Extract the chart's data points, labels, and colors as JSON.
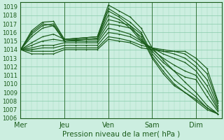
{
  "title": "Pression niveau de la mer( hPa )",
  "x_labels": [
    "Mer",
    "Jeu",
    "Ven",
    "Sam",
    "Dim"
  ],
  "x_ticks": [
    0,
    24,
    48,
    72,
    96
  ],
  "x_max": 110,
  "y_min": 1006,
  "y_max": 1019.5,
  "y_ticks": [
    1006,
    1007,
    1008,
    1009,
    1010,
    1011,
    1012,
    1013,
    1014,
    1015,
    1016,
    1017,
    1018,
    1019
  ],
  "bg_color": "#cceee0",
  "grid_color": "#88ccaa",
  "line_color": "#1a5c1a",
  "line_width": 0.85,
  "lines": [
    [
      0,
      1014.0,
      6,
      1015.8,
      12,
      1016.8,
      18,
      1017.0,
      24,
      1015.2,
      30,
      1015.3,
      36,
      1015.4,
      42,
      1015.5,
      48,
      1019.2,
      54,
      1018.5,
      60,
      1017.8,
      66,
      1016.5,
      72,
      1014.2,
      78,
      1012.8,
      84,
      1011.5,
      90,
      1010.2,
      96,
      1009.0,
      102,
      1007.5,
      108,
      1006.5
    ],
    [
      0,
      1014.0,
      6,
      1016.2,
      12,
      1017.2,
      18,
      1017.3,
      24,
      1015.2,
      30,
      1015.3,
      36,
      1015.4,
      42,
      1015.5,
      48,
      1018.8,
      54,
      1018.0,
      60,
      1017.2,
      66,
      1016.0,
      72,
      1013.5,
      78,
      1012.0,
      84,
      1010.5,
      90,
      1009.5,
      96,
      1008.5,
      102,
      1007.2,
      108,
      1006.5
    ],
    [
      0,
      1014.0,
      6,
      1016.0,
      12,
      1017.0,
      18,
      1016.8,
      24,
      1015.0,
      30,
      1015.1,
      36,
      1015.2,
      42,
      1015.3,
      48,
      1018.5,
      54,
      1017.8,
      60,
      1016.8,
      66,
      1015.8,
      72,
      1013.2,
      78,
      1011.5,
      84,
      1010.0,
      90,
      1009.0,
      96,
      1008.0,
      102,
      1007.0,
      108,
      1006.5
    ],
    [
      0,
      1014.0,
      6,
      1015.5,
      12,
      1016.5,
      18,
      1016.8,
      24,
      1015.0,
      30,
      1015.1,
      36,
      1015.2,
      42,
      1015.3,
      48,
      1018.0,
      54,
      1017.5,
      60,
      1016.5,
      66,
      1015.5,
      72,
      1013.0,
      78,
      1011.2,
      84,
      1009.8,
      90,
      1009.0,
      96,
      1008.2,
      102,
      1007.2,
      108,
      1006.5
    ],
    [
      0,
      1014.0,
      6,
      1014.8,
      12,
      1015.5,
      18,
      1015.8,
      24,
      1015.2,
      30,
      1015.2,
      36,
      1015.2,
      42,
      1015.2,
      48,
      1017.5,
      54,
      1017.2,
      60,
      1016.8,
      66,
      1015.2,
      72,
      1013.8,
      78,
      1012.5,
      84,
      1011.5,
      90,
      1010.8,
      96,
      1010.5,
      102,
      1008.5,
      108,
      1006.8
    ],
    [
      0,
      1014.0,
      6,
      1014.5,
      12,
      1015.0,
      18,
      1015.2,
      24,
      1015.0,
      30,
      1015.0,
      36,
      1015.0,
      42,
      1015.0,
      48,
      1017.0,
      54,
      1016.8,
      60,
      1016.5,
      66,
      1015.0,
      72,
      1014.0,
      78,
      1013.0,
      84,
      1012.2,
      90,
      1011.5,
      96,
      1011.0,
      102,
      1009.2,
      108,
      1007.0
    ],
    [
      0,
      1014.0,
      6,
      1014.2,
      12,
      1014.5,
      18,
      1014.5,
      24,
      1014.8,
      30,
      1014.8,
      36,
      1014.8,
      42,
      1014.8,
      48,
      1016.5,
      54,
      1016.2,
      60,
      1015.8,
      66,
      1015.0,
      72,
      1014.2,
      78,
      1013.5,
      84,
      1013.0,
      90,
      1012.5,
      96,
      1011.5,
      102,
      1009.8,
      108,
      1007.2
    ],
    [
      0,
      1014.0,
      6,
      1014.0,
      12,
      1014.2,
      18,
      1014.2,
      24,
      1014.5,
      30,
      1014.5,
      36,
      1014.5,
      42,
      1014.5,
      48,
      1016.0,
      54,
      1015.8,
      60,
      1015.5,
      66,
      1014.8,
      72,
      1014.2,
      78,
      1013.8,
      84,
      1013.5,
      90,
      1013.0,
      96,
      1012.0,
      102,
      1010.5,
      108,
      1007.5
    ],
    [
      0,
      1014.0,
      6,
      1013.8,
      12,
      1013.8,
      18,
      1013.8,
      24,
      1014.2,
      30,
      1014.2,
      36,
      1014.2,
      42,
      1014.2,
      48,
      1015.5,
      54,
      1015.3,
      60,
      1015.0,
      66,
      1014.5,
      72,
      1014.2,
      78,
      1014.0,
      84,
      1013.8,
      90,
      1013.5,
      96,
      1012.5,
      102,
      1011.2,
      108,
      1007.8
    ],
    [
      0,
      1014.0,
      6,
      1013.5,
      12,
      1013.5,
      18,
      1013.5,
      24,
      1014.0,
      30,
      1014.0,
      36,
      1014.0,
      42,
      1014.0,
      48,
      1015.2,
      54,
      1015.0,
      60,
      1014.8,
      66,
      1014.2,
      72,
      1014.0,
      78,
      1013.8,
      84,
      1013.8,
      90,
      1013.8,
      96,
      1013.0,
      102,
      1011.8,
      108,
      1008.0
    ]
  ]
}
